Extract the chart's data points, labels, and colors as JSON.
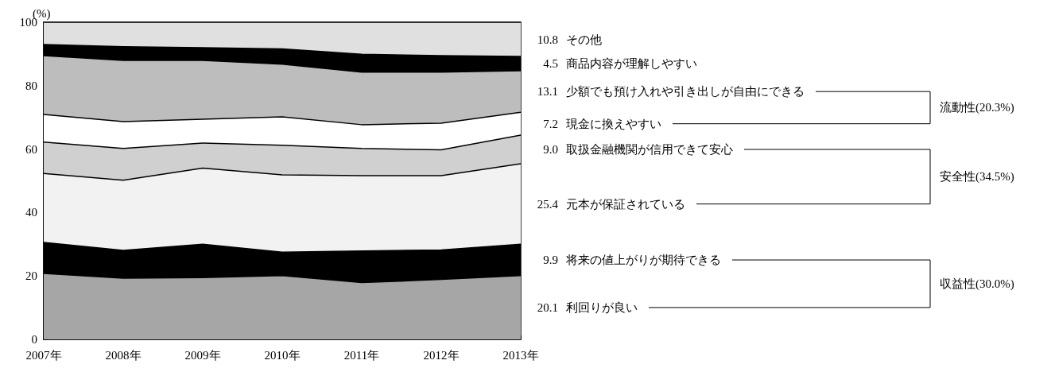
{
  "chart_data": {
    "type": "area",
    "stacked": true,
    "ylabel": "(%)",
    "categories": [
      "2007年",
      "2008年",
      "2009年",
      "2010年",
      "2011年",
      "2012年",
      "2013年"
    ],
    "ylim": [
      0,
      100
    ],
    "yticks": [
      0,
      20,
      40,
      60,
      80,
      100
    ],
    "series": [
      {
        "name": "利回りが良い",
        "color": "#a6a6a6",
        "values": [
          20.8,
          19.3,
          19.5,
          20.1,
          17.9,
          18.9,
          20.1
        ],
        "value_labels": [
          null,
          null,
          null,
          null,
          null,
          null,
          "20.1"
        ]
      },
      {
        "name": "将来の値上がりが期待できる",
        "color": "#000000",
        "values": [
          9.8,
          8.8,
          10.5,
          7.4,
          10.0,
          9.3,
          9.9
        ],
        "value_labels": [
          null,
          null,
          null,
          null,
          null,
          null,
          "9.9"
        ]
      },
      {
        "name": "元本が保証されている",
        "color": "#f2f2f2",
        "values": [
          21.7,
          22.1,
          24.0,
          24.4,
          23.7,
          23.4,
          25.4
        ],
        "value_labels": [
          null,
          null,
          null,
          null,
          null,
          null,
          "25.4"
        ]
      },
      {
        "name": "取扱金融機関が信用できて安心",
        "color": "#d0d0d0",
        "values": [
          9.9,
          10.0,
          7.9,
          9.3,
          8.6,
          8.2,
          9.0
        ],
        "value_labels": [
          null,
          null,
          null,
          null,
          null,
          null,
          "9.0"
        ]
      },
      {
        "name": "現金に換えやすい",
        "color": "#ffffff",
        "values": [
          8.7,
          8.5,
          7.5,
          9.0,
          7.5,
          8.4,
          7.2
        ],
        "value_labels": [
          null,
          null,
          null,
          null,
          null,
          null,
          "7.2"
        ]
      },
      {
        "name": "少額でも預け入れや引き出しが自由にできる",
        "color": "#bdbdbd",
        "values": [
          18.6,
          19.3,
          18.6,
          16.6,
          16.6,
          16.1,
          13.1
        ],
        "value_labels": [
          null,
          null,
          null,
          null,
          null,
          null,
          "13.1"
        ]
      },
      {
        "name": "商品内容が理解しやすい",
        "color": "#000000",
        "values": [
          3.5,
          4.3,
          4.0,
          4.8,
          5.6,
          5.2,
          4.5
        ],
        "value_labels": [
          null,
          null,
          null,
          null,
          null,
          null,
          "4.5"
        ]
      },
      {
        "name": "その他",
        "color": "#e0e0e0",
        "values": [
          7.0,
          7.7,
          8.0,
          8.4,
          10.1,
          10.5,
          10.8
        ],
        "value_labels": [
          null,
          null,
          null,
          null,
          null,
          null,
          "10.8"
        ]
      }
    ],
    "annotations": [
      "収益性(30.0%)",
      "安全性(34.5%)",
      "流動性(20.3%)"
    ]
  }
}
